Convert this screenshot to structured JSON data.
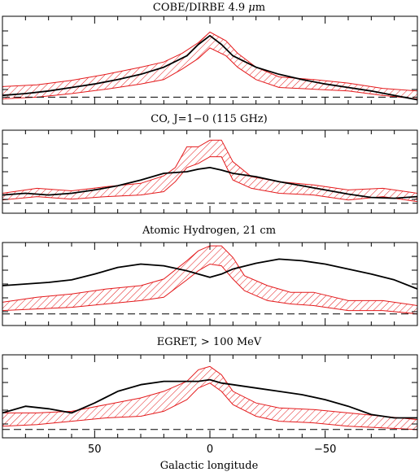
{
  "chart_data": {
    "type": "line",
    "xlabel": "Galactic longitude",
    "xlim": [
      90,
      -90
    ],
    "xticks": [
      50,
      0,
      -50
    ],
    "xtick_labels": [
      "50",
      "0",
      "−50"
    ],
    "colors": {
      "model_band": "#e41a1c",
      "data": "#000000",
      "zero": "#000000"
    },
    "panels": [
      {
        "title_parts": [
          "COBE/DIRBE 4.9 ",
          "μ",
          "m"
        ],
        "ylim": [
          0,
          1
        ],
        "zero_level": 0.08,
        "data_line": {
          "x": [
            90,
            80,
            70,
            60,
            50,
            40,
            30,
            20,
            10,
            5,
            0,
            -5,
            -10,
            -20,
            -30,
            -40,
            -50,
            -60,
            -70,
            -80,
            -90
          ],
          "y": [
            0.1,
            0.12,
            0.15,
            0.19,
            0.23,
            0.28,
            0.34,
            0.42,
            0.55,
            0.68,
            0.78,
            0.68,
            0.55,
            0.42,
            0.34,
            0.28,
            0.23,
            0.19,
            0.15,
            0.1,
            0.05
          ]
        },
        "model_band": {
          "x": [
            90,
            75,
            60,
            45,
            30,
            20,
            12,
            5,
            0,
            -7,
            -12,
            -20,
            -30,
            -45,
            -60,
            -75,
            -90
          ],
          "upper": [
            0.2,
            0.22,
            0.27,
            0.34,
            0.42,
            0.48,
            0.58,
            0.7,
            0.82,
            0.72,
            0.58,
            0.42,
            0.31,
            0.28,
            0.24,
            0.18,
            0.15
          ],
          "lower": [
            0.06,
            0.08,
            0.12,
            0.17,
            0.23,
            0.28,
            0.4,
            0.52,
            0.64,
            0.55,
            0.42,
            0.28,
            0.19,
            0.17,
            0.15,
            0.1,
            0.06
          ]
        }
      },
      {
        "title_parts": [
          "CO, J=1−0 (115 GHz)"
        ],
        "ylim": [
          0,
          1
        ],
        "zero_level": 0.12,
        "data_line": {
          "x": [
            90,
            80,
            70,
            60,
            50,
            40,
            30,
            20,
            10,
            5,
            0,
            -5,
            -10,
            -20,
            -30,
            -40,
            -50,
            -60,
            -70,
            -80,
            -90
          ],
          "y": [
            0.22,
            0.24,
            0.22,
            0.24,
            0.28,
            0.33,
            0.4,
            0.48,
            0.5,
            0.53,
            0.55,
            0.52,
            0.48,
            0.44,
            0.38,
            0.33,
            0.28,
            0.23,
            0.19,
            0.18,
            0.2
          ]
        },
        "model_band": {
          "x": [
            90,
            75,
            60,
            45,
            30,
            20,
            15,
            10,
            5,
            0,
            -5,
            -10,
            -18,
            -30,
            -45,
            -60,
            -75,
            -90
          ],
          "upper": [
            0.24,
            0.3,
            0.27,
            0.32,
            0.36,
            0.45,
            0.55,
            0.8,
            0.8,
            0.88,
            0.88,
            0.62,
            0.44,
            0.38,
            0.34,
            0.28,
            0.3,
            0.24
          ],
          "lower": [
            0.16,
            0.2,
            0.17,
            0.2,
            0.22,
            0.26,
            0.38,
            0.55,
            0.6,
            0.68,
            0.68,
            0.4,
            0.3,
            0.24,
            0.22,
            0.16,
            0.2,
            0.14
          ]
        }
      },
      {
        "title_parts": [
          "Atomic Hydrogen, 21 cm"
        ],
        "ylim": [
          0,
          1
        ],
        "zero_level": 0.14,
        "data_line": {
          "x": [
            90,
            80,
            70,
            60,
            50,
            40,
            30,
            20,
            10,
            5,
            0,
            -5,
            -10,
            -20,
            -30,
            -40,
            -50,
            -60,
            -70,
            -80,
            -90
          ],
          "y": [
            0.48,
            0.5,
            0.52,
            0.55,
            0.62,
            0.7,
            0.74,
            0.72,
            0.66,
            0.62,
            0.58,
            0.62,
            0.68,
            0.75,
            0.8,
            0.78,
            0.74,
            0.68,
            0.62,
            0.55,
            0.44
          ]
        },
        "model_band": {
          "x": [
            90,
            75,
            60,
            45,
            30,
            20,
            10,
            5,
            0,
            -5,
            -10,
            -15,
            -25,
            -35,
            -45,
            -60,
            -75,
            -90
          ],
          "upper": [
            0.28,
            0.34,
            0.38,
            0.44,
            0.48,
            0.56,
            0.78,
            0.9,
            0.96,
            0.96,
            0.82,
            0.6,
            0.48,
            0.4,
            0.4,
            0.3,
            0.3,
            0.24
          ],
          "lower": [
            0.18,
            0.2,
            0.22,
            0.26,
            0.3,
            0.34,
            0.55,
            0.66,
            0.74,
            0.72,
            0.56,
            0.42,
            0.3,
            0.26,
            0.24,
            0.18,
            0.18,
            0.14
          ]
        }
      },
      {
        "title_parts": [
          "EGRET, > 100 MeV"
        ],
        "ylim": [
          0,
          1
        ],
        "zero_level": 0.1,
        "data_line": {
          "x": [
            90,
            80,
            70,
            60,
            50,
            40,
            30,
            20,
            10,
            5,
            0,
            -5,
            -10,
            -20,
            -30,
            -40,
            -50,
            -60,
            -70,
            -80,
            -90
          ],
          "y": [
            0.3,
            0.38,
            0.35,
            0.3,
            0.42,
            0.56,
            0.64,
            0.68,
            0.68,
            0.68,
            0.7,
            0.66,
            0.64,
            0.6,
            0.56,
            0.52,
            0.46,
            0.38,
            0.28,
            0.24,
            0.24
          ]
        },
        "model_band": {
          "x": [
            90,
            75,
            60,
            45,
            30,
            20,
            10,
            5,
            0,
            -5,
            -10,
            -20,
            -30,
            -45,
            -60,
            -75,
            -90
          ],
          "upper": [
            0.3,
            0.3,
            0.32,
            0.4,
            0.48,
            0.56,
            0.68,
            0.82,
            0.86,
            0.76,
            0.56,
            0.42,
            0.36,
            0.34,
            0.3,
            0.26,
            0.22
          ],
          "lower": [
            0.14,
            0.16,
            0.2,
            0.24,
            0.26,
            0.32,
            0.46,
            0.6,
            0.66,
            0.56,
            0.4,
            0.26,
            0.2,
            0.18,
            0.14,
            0.12,
            0.1
          ]
        }
      }
    ]
  }
}
